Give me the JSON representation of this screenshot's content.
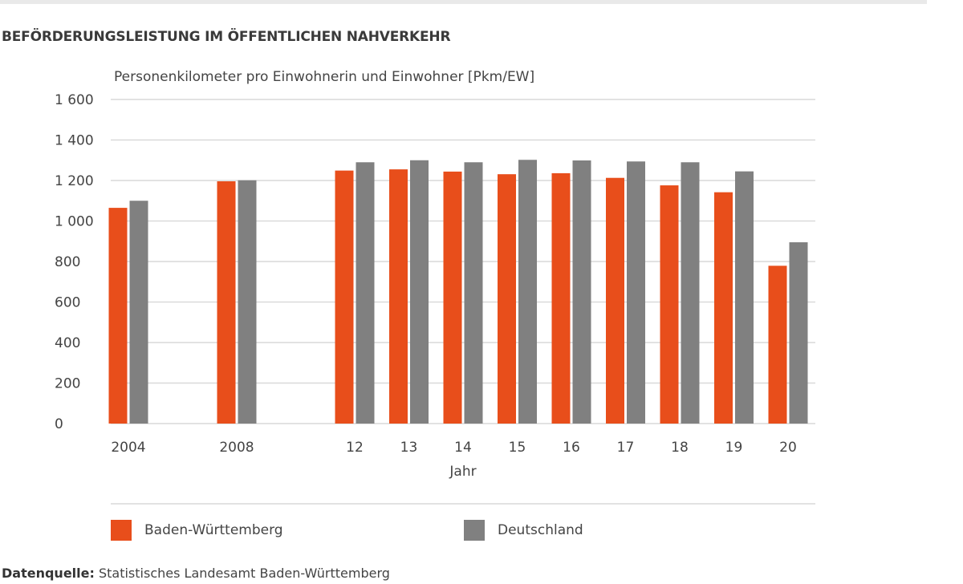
{
  "title": "BEFÖRDERUNGSLEISTUNG IM ÖFFENTLICHEN NAHVERKEHR",
  "source": {
    "label": "Datenquelle:",
    "text": " Statistisches Landesamt Baden-Württemberg"
  },
  "chart_data": {
    "type": "bar",
    "title": "",
    "ylabel": "Personenkilometer pro Einwohnerin und Einwohner [Pkm/EW]",
    "xlabel": "Jahr",
    "ylim": [
      0,
      1600
    ],
    "yticks": [
      0,
      200,
      400,
      600,
      800,
      1000,
      1200,
      1400,
      1600
    ],
    "ytick_labels": [
      "0",
      "200",
      "400",
      "600",
      "800",
      "1 000",
      "1 200",
      "1 400",
      "1 600"
    ],
    "grid": true,
    "legend": "bottom",
    "categories": [
      "2004",
      "2008",
      "12",
      "13",
      "14",
      "15",
      "16",
      "17",
      "18",
      "19",
      "20"
    ],
    "series": [
      {
        "name": "Baden-Württemberg",
        "color": "#e84e1b",
        "values": [
          1065,
          1196,
          1249,
          1255,
          1244,
          1231,
          1236,
          1213,
          1176,
          1142,
          779
        ]
      },
      {
        "name": "Deutschland",
        "color": "#808080",
        "values": [
          1100,
          1201,
          1290,
          1300,
          1290,
          1302,
          1299,
          1294,
          1290,
          1245,
          895
        ]
      }
    ]
  }
}
